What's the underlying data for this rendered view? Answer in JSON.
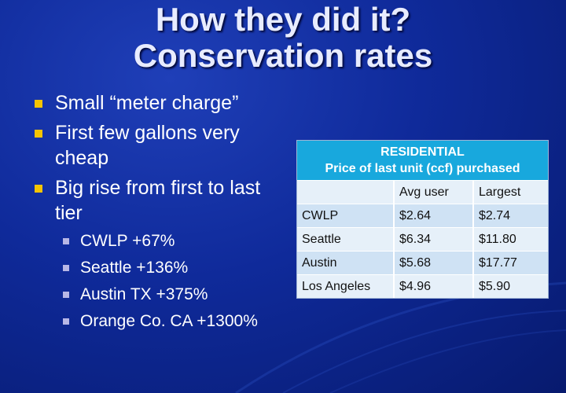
{
  "title": [
    "How they did it?",
    "Conservation rates"
  ],
  "bullets": [
    {
      "text": "Small “meter charge”"
    },
    {
      "text": "First few gallons very cheap"
    },
    {
      "text": "Big rise from first to last tier"
    }
  ],
  "sub_bullets": [
    "CWLP +67%",
    "Seattle +136%",
    "Austin TX +375%",
    "Orange Co. CA +1300%"
  ],
  "table": {
    "header": [
      "RESIDENTIAL",
      "Price of last unit (ccf) purchased"
    ],
    "columns": [
      "",
      "Avg user",
      "Largest"
    ],
    "rows": [
      [
        "CWLP",
        "$2.64",
        "$2.74"
      ],
      [
        "Seattle",
        "$6.34",
        "$11.80"
      ],
      [
        "Austin",
        "$5.68",
        "$17.77"
      ],
      [
        "Los Angeles",
        "$4.96",
        "$5.90"
      ]
    ]
  },
  "colors": {
    "background": "#0f2a9a",
    "bullet": "#f5c400",
    "sub_bullet": "#b7b7e6",
    "table_header": "#18a8dd",
    "table_row": "#cfe2f4"
  }
}
